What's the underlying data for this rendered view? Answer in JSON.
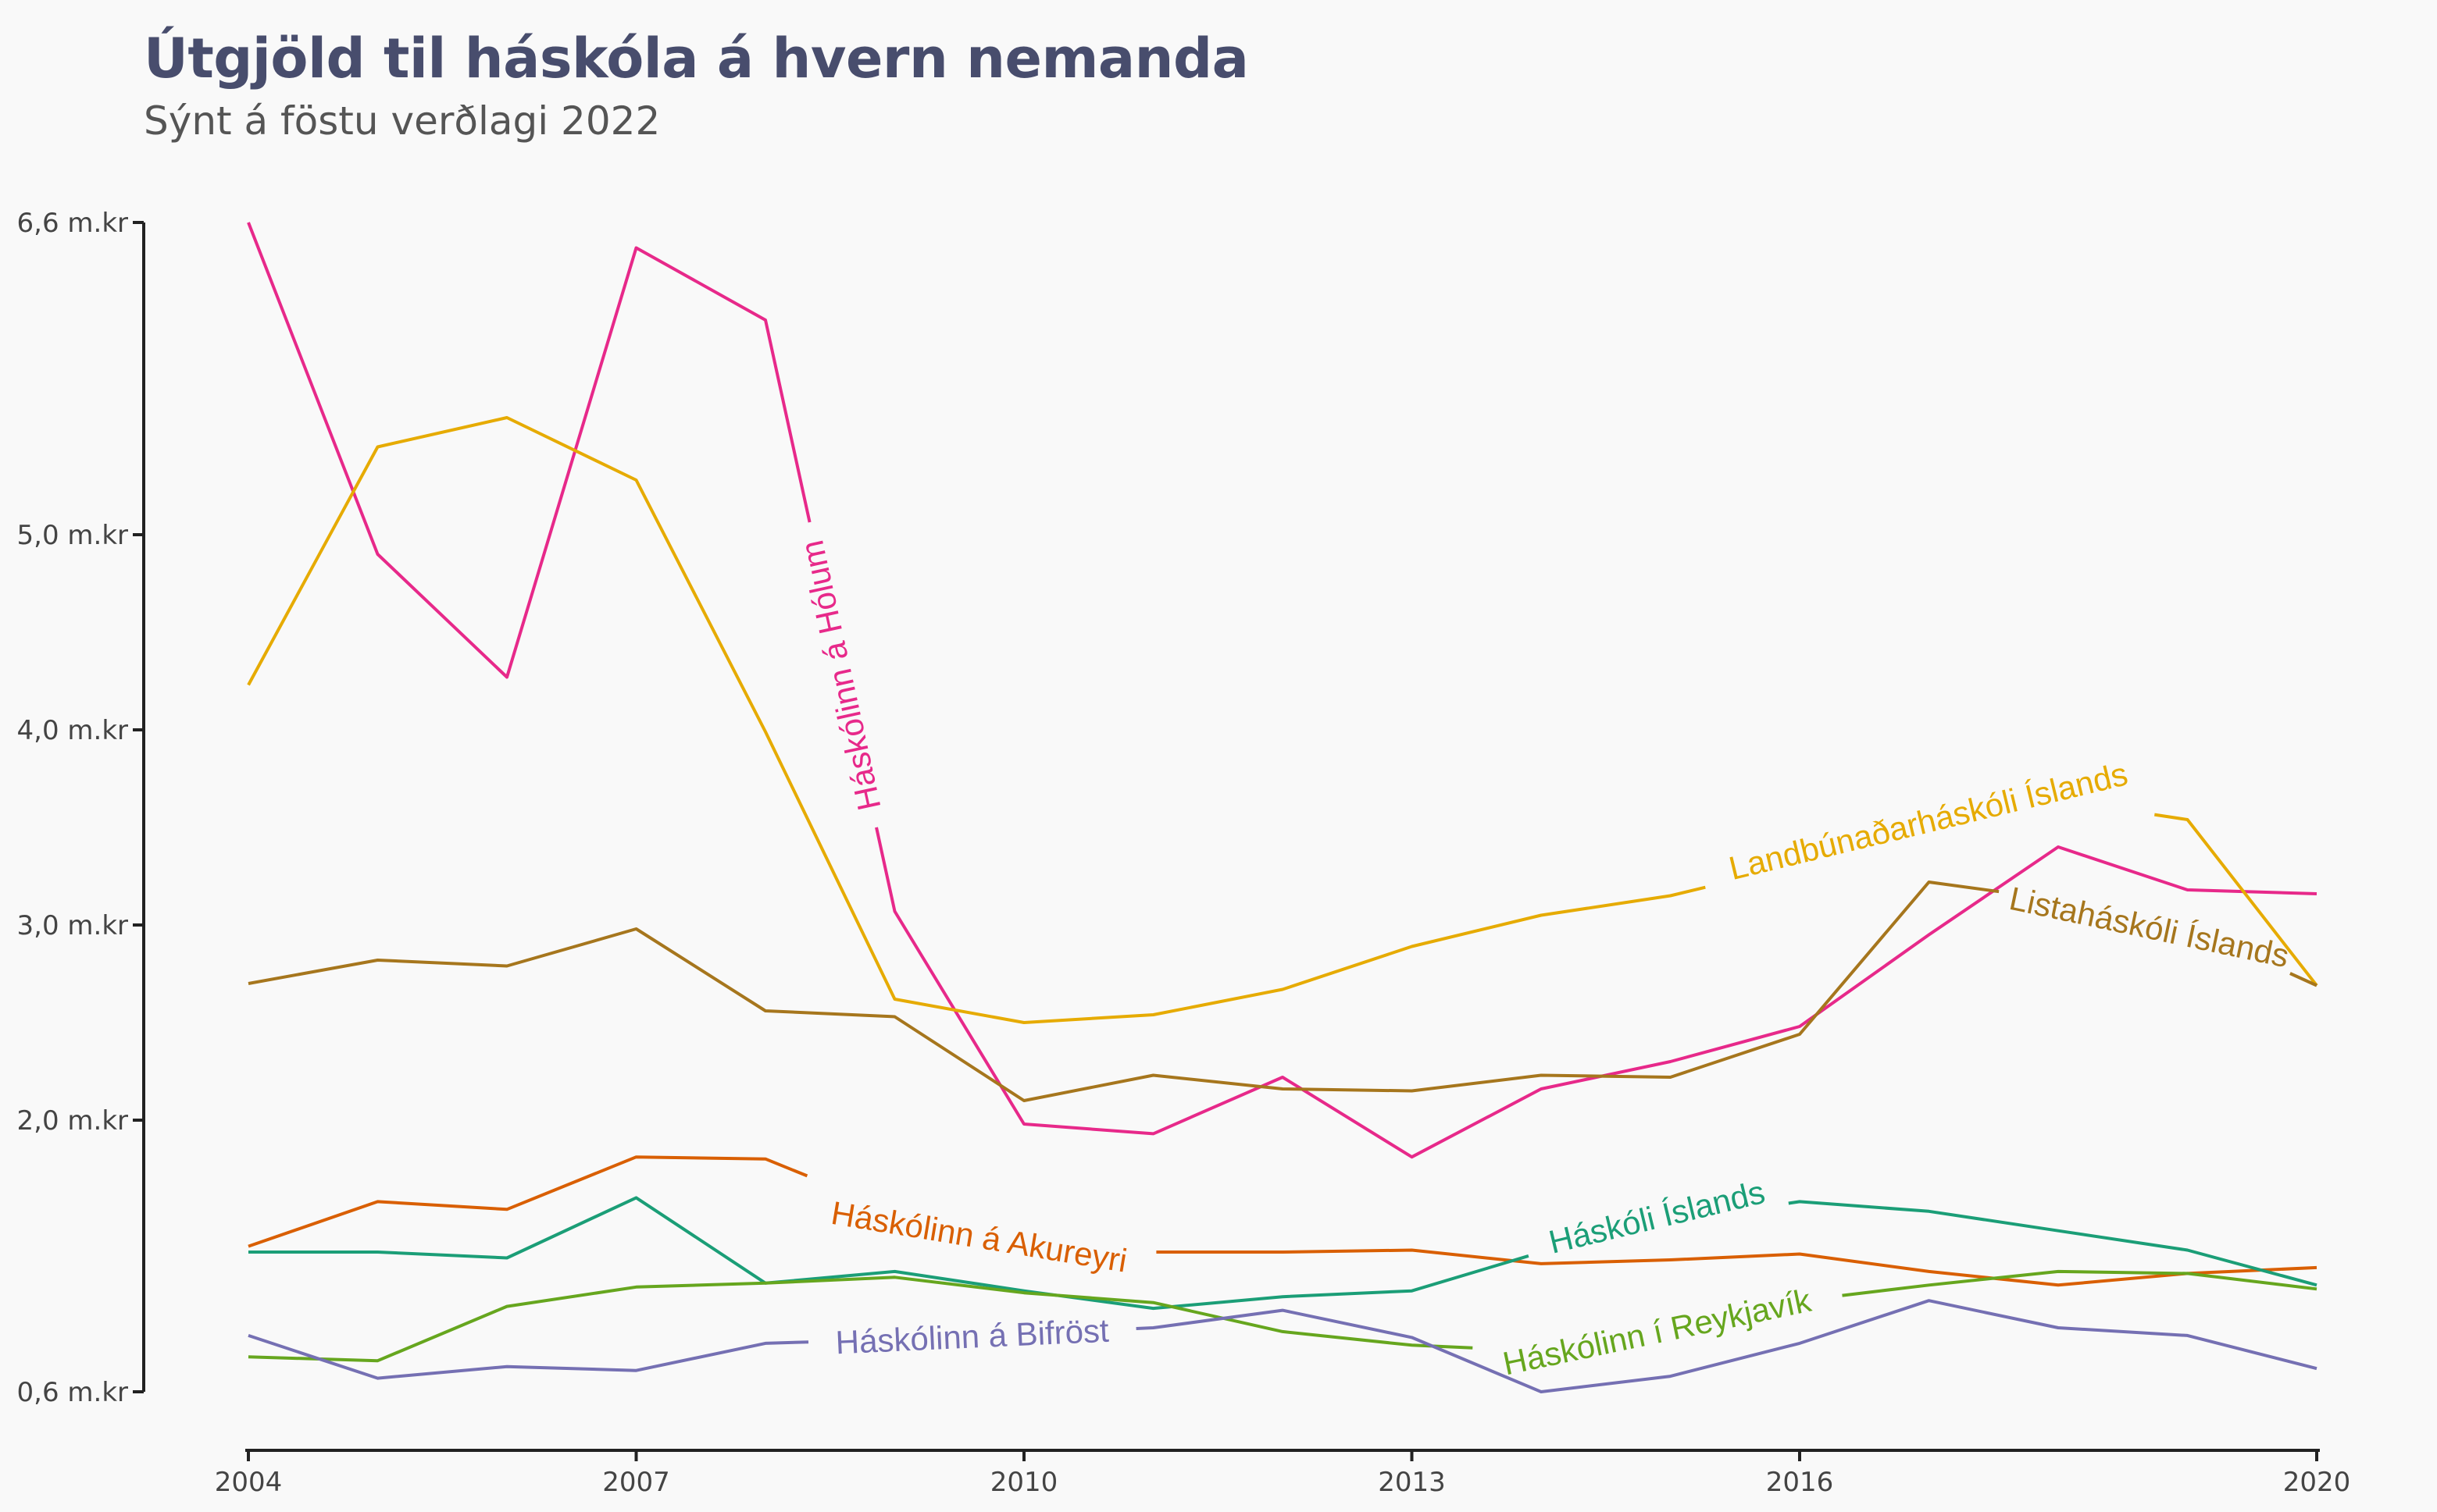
{
  "header": {
    "title": "Útgjöld til háskóla á hvern nemanda",
    "subtitle": "Sýnt á föstu verðlagi 2022"
  },
  "chart_data": {
    "type": "line",
    "title": "Útgjöld til háskóla á hvern nemanda",
    "subtitle": "Sýnt á föstu verðlagi 2022",
    "xlabel": "",
    "ylabel": "",
    "x": [
      2004,
      2005,
      2006,
      2007,
      2008,
      2009,
      2010,
      2011,
      2012,
      2013,
      2014,
      2015,
      2016,
      2017,
      2018,
      2019,
      2020
    ],
    "xlim": [
      2004,
      2020
    ],
    "x_ticks": [
      "2004",
      "2007",
      "2010",
      "2013",
      "2016",
      "2020"
    ],
    "x_tick_values": [
      2004,
      2007,
      2010,
      2013,
      2016,
      2020
    ],
    "ylim": [
      0.6,
      6.6
    ],
    "y_ticks": [
      "0,6 m.kr",
      "2,0 m.kr",
      "3,0 m.kr",
      "4,0 m.kr",
      "5,0 m.kr",
      "6,6 m.kr"
    ],
    "y_tick_values": [
      0.6,
      2.0,
      3.0,
      4.0,
      5.0,
      6.6
    ],
    "grid": false,
    "legend": "direct labels on lines",
    "series": [
      {
        "name": "Háskólinn á Hólum",
        "color": "#e7298a",
        "values": [
          6.6,
          4.9,
          4.27,
          6.47,
          6.1,
          3.07,
          1.98,
          1.93,
          2.22,
          1.81,
          2.16,
          2.3,
          2.48,
          2.95,
          3.4,
          3.18,
          3.16
        ]
      },
      {
        "name": "Landbúnaðarháskóli Íslands",
        "color": "#e6ab02",
        "values": [
          4.23,
          5.45,
          5.6,
          5.28,
          3.99,
          2.62,
          2.5,
          2.54,
          2.67,
          2.89,
          3.05,
          3.15,
          3.31,
          3.48,
          3.64,
          3.54,
          2.69
        ]
      },
      {
        "name": "Listaháskóli Íslands",
        "color": "#a6761d",
        "values": [
          2.7,
          2.82,
          2.79,
          2.98,
          2.56,
          2.53,
          2.1,
          2.23,
          2.16,
          2.15,
          2.23,
          2.22,
          2.44,
          3.22,
          3.13,
          2.99,
          2.69
        ]
      },
      {
        "name": "Háskólinn á Akureyri",
        "color": "#d95f02",
        "values": [
          1.35,
          1.58,
          1.54,
          1.81,
          1.8,
          1.53,
          1.42,
          1.32,
          1.32,
          1.33,
          1.26,
          1.28,
          1.31,
          1.22,
          1.15,
          1.21,
          1.24
        ]
      },
      {
        "name": "Háskóli Íslands",
        "color": "#1b9e77",
        "values": [
          1.32,
          1.32,
          1.29,
          1.6,
          1.16,
          1.22,
          1.12,
          1.03,
          1.09,
          1.12,
          1.32,
          1.48,
          1.58,
          1.53,
          1.43,
          1.33,
          1.15
        ]
      },
      {
        "name": "Háskólinn í Reykjavík",
        "color": "#66a61e",
        "values": [
          0.78,
          0.76,
          1.04,
          1.14,
          1.16,
          1.19,
          1.11,
          1.06,
          0.91,
          0.84,
          0.81,
          0.95,
          1.07,
          1.15,
          1.22,
          1.21,
          1.13
        ]
      },
      {
        "name": "Háskólinn á Bifröst",
        "color": "#7570b3",
        "values": [
          0.89,
          0.67,
          0.73,
          0.71,
          0.85,
          0.87,
          0.9,
          0.93,
          1.02,
          0.88,
          0.6,
          0.68,
          0.85,
          1.07,
          0.93,
          0.89,
          0.72
        ]
      }
    ]
  }
}
